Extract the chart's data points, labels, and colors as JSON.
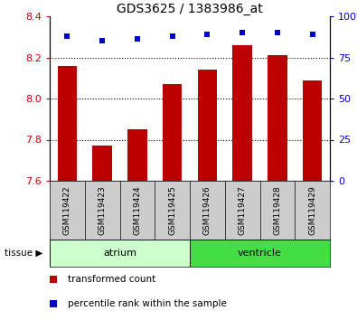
{
  "title": "GDS3625 / 1383986_at",
  "samples": [
    "GSM119422",
    "GSM119423",
    "GSM119424",
    "GSM119425",
    "GSM119426",
    "GSM119427",
    "GSM119428",
    "GSM119429"
  ],
  "bar_values": [
    8.16,
    7.77,
    7.85,
    8.07,
    8.14,
    8.26,
    8.21,
    8.09
  ],
  "bar_base": 7.6,
  "percentile_values": [
    88,
    85,
    86,
    88,
    89,
    90,
    90,
    89
  ],
  "ylim_left": [
    7.6,
    8.4
  ],
  "ylim_right": [
    0,
    100
  ],
  "yticks_left": [
    7.6,
    7.8,
    8.0,
    8.2,
    8.4
  ],
  "yticks_right": [
    0,
    25,
    50,
    75,
    100
  ],
  "bar_color": "#bb0000",
  "dot_color": "#0000cc",
  "atrium_color": "#ccffcc",
  "ventricle_color": "#44dd44",
  "xtick_bg_color": "#cccccc",
  "tick_color_left": "#cc0000",
  "tick_color_right": "#0000cc",
  "bar_width": 0.55,
  "legend_items": [
    {
      "label": "transformed count",
      "color": "#bb0000"
    },
    {
      "label": "percentile rank within the sample",
      "color": "#0000cc"
    }
  ]
}
